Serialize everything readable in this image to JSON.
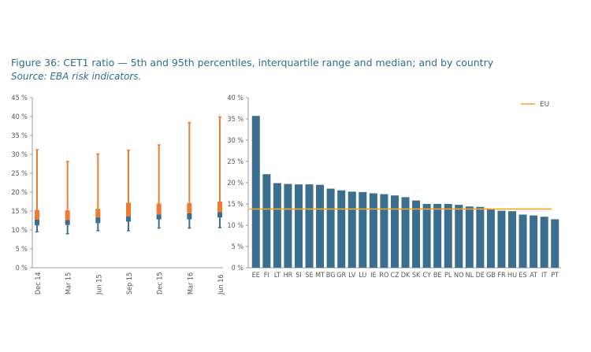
{
  "figure": {
    "title": "Figure 36: CET1 ratio — 5th and 95th percentiles, interquartile range and median; and by country",
    "source": "Source: EBA risk indicators."
  },
  "colors": {
    "orange": "#ef7b32",
    "blue": "#3c6e90",
    "eu_line": "#f5a623",
    "axis": "#9a9a9a"
  },
  "chart_data": [
    {
      "type": "box",
      "categories": [
        "Dec 14",
        "Mar 15",
        "Jun 15",
        "Sep 15",
        "Dec 15",
        "Mar 16",
        "Jun 16"
      ],
      "p5": [
        9.5,
        9.0,
        9.8,
        9.8,
        10.5,
        10.5,
        10.6
      ],
      "q1": [
        11.2,
        11.3,
        11.8,
        12.2,
        12.8,
        12.8,
        13.3
      ],
      "median": [
        12.7,
        12.6,
        13.3,
        13.6,
        14.1,
        14.4,
        14.7
      ],
      "q3": [
        15.3,
        15.2,
        15.6,
        17.2,
        17.0,
        17.1,
        17.5
      ],
      "p95": [
        31.2,
        28.1,
        30.1,
        31.1,
        32.5,
        38.4,
        39.9
      ],
      "yticks": [
        "0 %",
        "5 %",
        "10 %",
        "15 %",
        "20 %",
        "25 %",
        "30 %",
        "35 %",
        "40 %",
        "45 %"
      ],
      "ylim": [
        0,
        45
      ]
    },
    {
      "type": "bar",
      "categories": [
        "EE",
        "FI",
        "LT",
        "HR",
        "SI",
        "SE",
        "MT",
        "BG",
        "GR",
        "LV",
        "LU",
        "IE",
        "RO",
        "CZ",
        "DK",
        "SK",
        "CY",
        "BE",
        "PL",
        "NO",
        "NL",
        "DE",
        "GB",
        "FR",
        "HU",
        "ES",
        "AT",
        "IT",
        "PT"
      ],
      "values": [
        35.7,
        22.0,
        19.9,
        19.7,
        19.6,
        19.6,
        19.5,
        18.6,
        18.2,
        17.9,
        17.8,
        17.5,
        17.3,
        17.0,
        16.6,
        15.8,
        15.0,
        15.0,
        15.0,
        14.8,
        14.4,
        14.3,
        13.7,
        13.4,
        13.3,
        12.5,
        12.3,
        12.0,
        11.4
      ],
      "reference_line": {
        "name": "EU",
        "value": 13.8
      },
      "yticks": [
        "0 %",
        "5 %",
        "10 %",
        "15 %",
        "20 %",
        "25 %",
        "30 %",
        "35 %",
        "40 %"
      ],
      "ylim": [
        0,
        40
      ],
      "legend": {
        "label": "EU",
        "position": "top-right"
      }
    }
  ]
}
